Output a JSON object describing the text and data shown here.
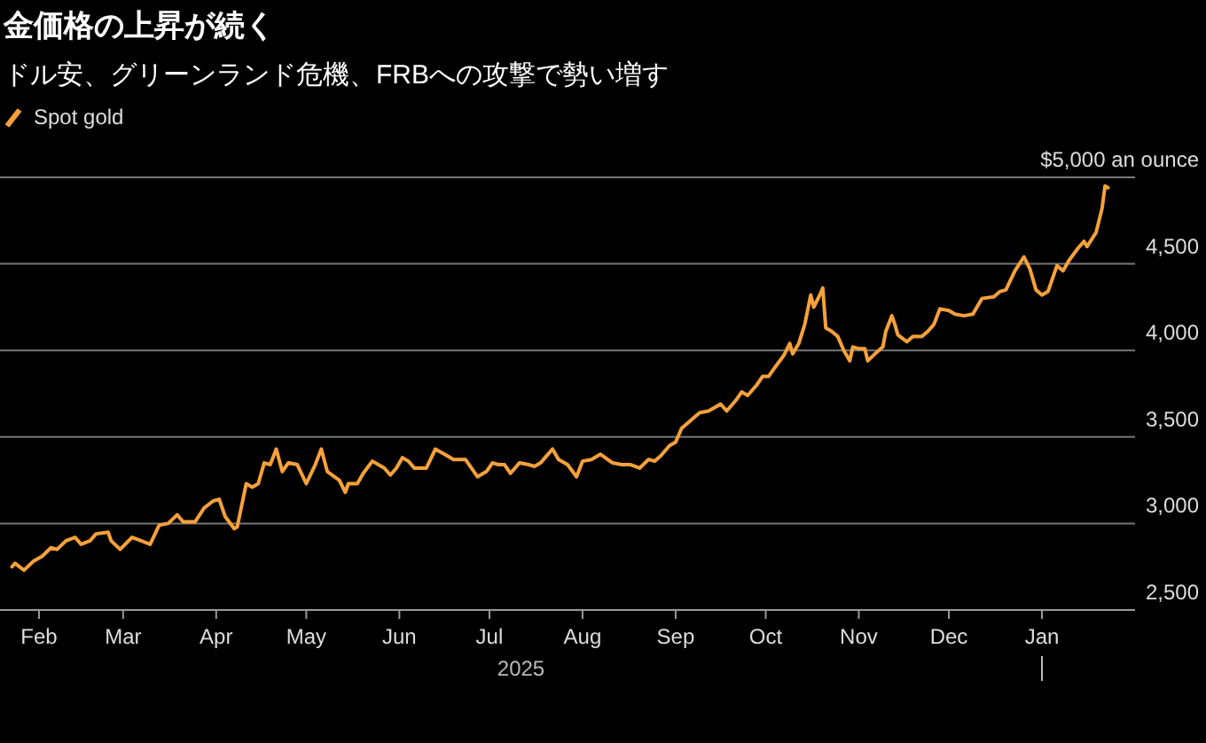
{
  "chart_data": {
    "type": "line",
    "title": "金価格の上昇が続く",
    "subtitle": "ドル安、グリーンランド危機、FRBへの攻撃で勢い増す",
    "xlabel": "2025",
    "xlim": [
      "2025-01-19",
      "2026-02-01"
    ],
    "xticks": [
      {
        "value": "2025-02-01",
        "label": "Feb"
      },
      {
        "value": "2025-03-01",
        "label": "Mar"
      },
      {
        "value": "2025-04-01",
        "label": "Apr"
      },
      {
        "value": "2025-05-01",
        "label": "May"
      },
      {
        "value": "2025-06-01",
        "label": "Jun"
      },
      {
        "value": "2025-07-01",
        "label": "Jul"
      },
      {
        "value": "2025-08-01",
        "label": "Aug"
      },
      {
        "value": "2025-09-01",
        "label": "Sep"
      },
      {
        "value": "2025-10-01",
        "label": "Oct"
      },
      {
        "value": "2025-11-01",
        "label": "Nov"
      },
      {
        "value": "2025-12-01",
        "label": "Dec"
      },
      {
        "value": "2026-01-01",
        "label": "Jan"
      }
    ],
    "ylim": [
      2500,
      5000
    ],
    "yticks": [
      {
        "value": 2500,
        "label": "2,500"
      },
      {
        "value": 3000,
        "label": "3,000"
      },
      {
        "value": 3500,
        "label": "3,500"
      },
      {
        "value": 4000,
        "label": "4,000"
      },
      {
        "value": 4500,
        "label": "4,500"
      },
      {
        "value": 5000,
        "label": "$5,000 an ounce"
      }
    ],
    "grid": "y",
    "legend": "top left",
    "line_style": "solid",
    "x": [
      "2025-01-23",
      "2025-01-24",
      "2025-01-27",
      "2025-01-30",
      "2025-02-02",
      "2025-02-05",
      "2025-02-07",
      "2025-02-10",
      "2025-02-13",
      "2025-02-15",
      "2025-02-18",
      "2025-02-20",
      "2025-02-24",
      "2025-02-25",
      "2025-02-28",
      "2025-03-04",
      "2025-03-07",
      "2025-03-10",
      "2025-03-13",
      "2025-03-16",
      "2025-03-19",
      "2025-03-21",
      "2025-03-25",
      "2025-03-28",
      "2025-03-31",
      "2025-04-02",
      "2025-04-04",
      "2025-04-07",
      "2025-04-08",
      "2025-04-11",
      "2025-04-13",
      "2025-04-15",
      "2025-04-17",
      "2025-04-19",
      "2025-04-21",
      "2025-04-23",
      "2025-04-25",
      "2025-04-28",
      "2025-05-01",
      "2025-05-04",
      "2025-05-06",
      "2025-05-08",
      "2025-05-12",
      "2025-05-14",
      "2025-05-15",
      "2025-05-18",
      "2025-05-20",
      "2025-05-23",
      "2025-05-25",
      "2025-05-27",
      "2025-05-29",
      "2025-05-31",
      "2025-06-02",
      "2025-06-04",
      "2025-06-06",
      "2025-06-10",
      "2025-06-13",
      "2025-06-16",
      "2025-06-19",
      "2025-06-23",
      "2025-06-25",
      "2025-06-27",
      "2025-06-30",
      "2025-07-02",
      "2025-07-04",
      "2025-07-06",
      "2025-07-08",
      "2025-07-11",
      "2025-07-14",
      "2025-07-16",
      "2025-07-18",
      "2025-07-22",
      "2025-07-24",
      "2025-07-27",
      "2025-07-30",
      "2025-08-01",
      "2025-08-04",
      "2025-08-07",
      "2025-08-11",
      "2025-08-14",
      "2025-08-17",
      "2025-08-20",
      "2025-08-23",
      "2025-08-25",
      "2025-08-27",
      "2025-08-30",
      "2025-09-01",
      "2025-09-03",
      "2025-09-05",
      "2025-09-07",
      "2025-09-09",
      "2025-09-12",
      "2025-09-16",
      "2025-09-18",
      "2025-09-21",
      "2025-09-23",
      "2025-09-25",
      "2025-09-28",
      "2025-09-30",
      "2025-10-02",
      "2025-10-04",
      "2025-10-07",
      "2025-10-09",
      "2025-10-10",
      "2025-10-12",
      "2025-10-14",
      "2025-10-16",
      "2025-10-17",
      "2025-10-19",
      "2025-10-20",
      "2025-10-21",
      "2025-10-23",
      "2025-10-25",
      "2025-10-27",
      "2025-10-29",
      "2025-10-30",
      "2025-11-01",
      "2025-11-03",
      "2025-11-04",
      "2025-11-07",
      "2025-11-09",
      "2025-11-10",
      "2025-11-12",
      "2025-11-13",
      "2025-11-14",
      "2025-11-17",
      "2025-11-19",
      "2025-11-22",
      "2025-11-24",
      "2025-11-26",
      "2025-11-28",
      "2025-12-01",
      "2025-12-03",
      "2025-12-06",
      "2025-12-09",
      "2025-12-12",
      "2025-12-16",
      "2025-12-18",
      "2025-12-20",
      "2025-12-23",
      "2025-12-26",
      "2025-12-28",
      "2025-12-30",
      "2026-01-01",
      "2026-01-03",
      "2026-01-06",
      "2026-01-08",
      "2026-01-10",
      "2026-01-13",
      "2026-01-15",
      "2026-01-16",
      "2026-01-19",
      "2026-01-21",
      "2026-01-22",
      "2026-01-23"
    ],
    "series": [
      {
        "name": "Spot gold",
        "color": "#f7a13a",
        "values": [
          2750,
          2770,
          2730,
          2780,
          2810,
          2860,
          2850,
          2900,
          2920,
          2880,
          2900,
          2940,
          2950,
          2900,
          2850,
          2920,
          2900,
          2880,
          2990,
          3000,
          3050,
          3010,
          3010,
          3090,
          3130,
          3140,
          3040,
          2970,
          2980,
          3230,
          3210,
          3230,
          3350,
          3340,
          3430,
          3300,
          3350,
          3340,
          3230,
          3340,
          3430,
          3300,
          3250,
          3180,
          3230,
          3230,
          3290,
          3360,
          3340,
          3320,
          3280,
          3320,
          3380,
          3360,
          3320,
          3320,
          3430,
          3400,
          3370,
          3370,
          3320,
          3270,
          3300,
          3350,
          3340,
          3340,
          3290,
          3350,
          3340,
          3330,
          3350,
          3430,
          3370,
          3340,
          3270,
          3360,
          3370,
          3400,
          3350,
          3340,
          3340,
          3320,
          3370,
          3360,
          3390,
          3450,
          3470,
          3550,
          3580,
          3610,
          3640,
          3650,
          3690,
          3650,
          3710,
          3760,
          3740,
          3800,
          3850,
          3850,
          3900,
          3970,
          4040,
          3980,
          4040,
          4150,
          4320,
          4250,
          4320,
          4360,
          4130,
          4110,
          4080,
          4000,
          3940,
          4020,
          4010,
          4010,
          3940,
          3990,
          4020,
          4110,
          4200,
          4150,
          4090,
          4050,
          4080,
          4080,
          4110,
          4150,
          4240,
          4230,
          4210,
          4200,
          4210,
          4300,
          4310,
          4340,
          4350,
          4460,
          4540,
          4470,
          4350,
          4320,
          4340,
          4490,
          4460,
          4520,
          4590,
          4630,
          4600,
          4680,
          4820,
          4950,
          4940
        ]
      }
    ]
  }
}
